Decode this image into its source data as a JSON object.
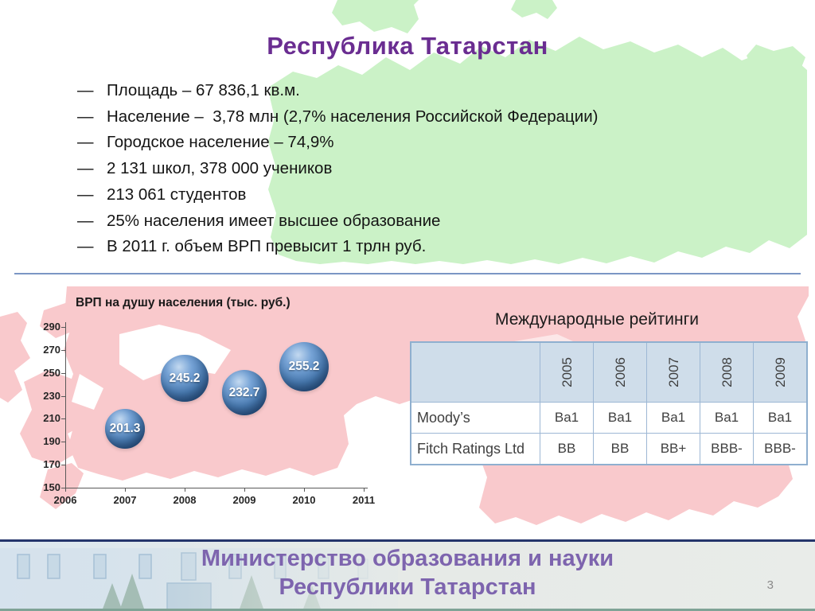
{
  "slide": {
    "title": "Республика Татарстан",
    "page_number": "3",
    "footer": {
      "line1": "Министерство образования и науки",
      "line2": "Республики Татарстан"
    }
  },
  "bullets": {
    "marker": "—",
    "items": [
      "Площадь – 67 836,1 кв.м.",
      "Население –  3,78 млн (2,7% населения Российской Федерации)",
      "Городское население – 74,9%",
      "2 131 школ, 378 000 учеников",
      "213 061 студентов",
      "25% населения имеет высшее образование",
      "В 2011 г. объем ВРП превысит 1 трлн руб."
    ]
  },
  "chart_data": {
    "type": "scatter",
    "title": "ВРП на душу населения (тыс. руб.)",
    "x": [
      2007,
      2008,
      2009,
      2010
    ],
    "values": [
      201.3,
      245.2,
      232.7,
      255.2
    ],
    "labels": [
      "201.3",
      "245.2",
      "232.7",
      "255.2"
    ],
    "x_ticks": [
      "2006",
      "2007",
      "2008",
      "2009",
      "2010",
      "2011"
    ],
    "y_ticks": [
      150,
      170,
      190,
      210,
      230,
      250,
      270,
      290
    ],
    "xlim": [
      2006,
      2011
    ],
    "ylim": [
      150,
      290
    ],
    "xlabel": "",
    "ylabel": "",
    "grid": false,
    "legend": "none",
    "bubble_color": "#4F81BD"
  },
  "ratings": {
    "heading": "Международные рейтинги",
    "columns": [
      "2005",
      "2006",
      "2007",
      "2008",
      "2009"
    ],
    "rows": [
      {
        "label": "Moody’s",
        "values": [
          "Ba1",
          "Ba1",
          "Ba1",
          "Ba1",
          "Ba1"
        ]
      },
      {
        "label": "Fitch Ratings Ltd",
        "values": [
          "BB",
          "BB",
          "BB+",
          "BBB-",
          "BBB-"
        ]
      }
    ]
  },
  "colors": {
    "title_purple": "#6A2D91",
    "footer_purple": "#7D64AE",
    "map_green": "#CBF2C7",
    "map_red": "#F9C9CC",
    "divider_blue": "#7B96C4",
    "table_border": "#9DB7D4",
    "table_header_bg": "#CFDDEA",
    "bubble_blue": "#4F81BD",
    "footer_border_navy": "#24356B",
    "footer_stripe_teal": "#7FA396"
  }
}
